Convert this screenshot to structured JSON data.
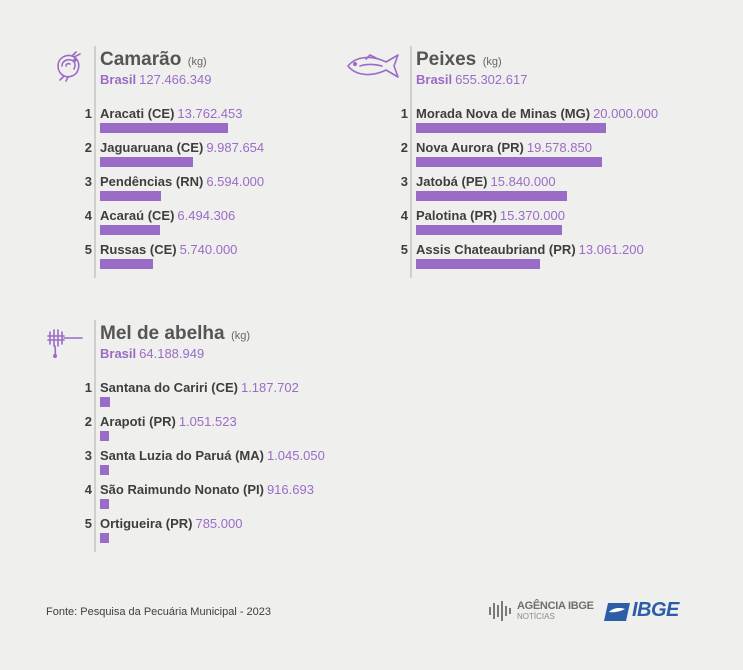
{
  "panels": [
    {
      "title": "Camarão",
      "unit": "(kg)",
      "brasil_label": "Brasil",
      "brasil_value": "127.466.349",
      "icon": "shrimp-icon",
      "rows": [
        {
          "rank": "1",
          "place": "Aracati (CE)",
          "value": "13.762.453"
        },
        {
          "rank": "2",
          "place": "Jaguaruana (CE)",
          "value": "9.987.654"
        },
        {
          "rank": "3",
          "place": "Pendências (RN)",
          "value": "6.594.000"
        },
        {
          "rank": "4",
          "place": "Acaraú (CE)",
          "value": "6.494.306"
        },
        {
          "rank": "5",
          "place": "Russas (CE)",
          "value": "5.740.000"
        }
      ]
    },
    {
      "title": "Peixes",
      "unit": "(kg)",
      "brasil_label": "Brasil",
      "brasil_value": "655.302.617",
      "icon": "fish-icon",
      "rows": [
        {
          "rank": "1",
          "place": "Morada Nova de Minas (MG)",
          "value": "20.000.000"
        },
        {
          "rank": "2",
          "place": "Nova Aurora (PR)",
          "value": "19.578.850"
        },
        {
          "rank": "3",
          "place": "Jatobá (PE)",
          "value": "15.840.000"
        },
        {
          "rank": "4",
          "place": "Palotina (PR)",
          "value": "15.370.000"
        },
        {
          "rank": "5",
          "place": "Assis Chateaubriand (PR)",
          "value": "13.061.200"
        }
      ]
    },
    {
      "title": "Mel de abelha",
      "unit": "(kg)",
      "brasil_label": "Brasil",
      "brasil_value": "64.188.949",
      "icon": "honey-dipper-icon",
      "rows": [
        {
          "rank": "1",
          "place": "Santana do Cariri (CE)",
          "value": "1.187.702"
        },
        {
          "rank": "2",
          "place": "Arapoti (PR)",
          "value": "1.051.523"
        },
        {
          "rank": "3",
          "place": "Santa Luzia do Paruá (MA)",
          "value": "1.045.050"
        },
        {
          "rank": "4",
          "place": "São Raimundo Nonato (PI)",
          "value": "916.693"
        },
        {
          "rank": "5",
          "place": "Ortigueira (PR)",
          "value": "785.000"
        }
      ]
    }
  ],
  "chart_data": [
    {
      "type": "bar",
      "title": "Camarão",
      "unit": "kg",
      "total": 127466349,
      "categories": [
        "Aracati (CE)",
        "Jaguaruana (CE)",
        "Pendências (RN)",
        "Acaraú (CE)",
        "Russas (CE)"
      ],
      "values": [
        13762453,
        9987654,
        6594000,
        6494306,
        5740000
      ]
    },
    {
      "type": "bar",
      "title": "Peixes",
      "unit": "kg",
      "total": 655302617,
      "categories": [
        "Morada Nova de Minas (MG)",
        "Nova Aurora (PR)",
        "Jatobá (PE)",
        "Palotina (PR)",
        "Assis Chateaubriand (PR)"
      ],
      "values": [
        20000000,
        19578850,
        15840000,
        15370000,
        13061200
      ]
    },
    {
      "type": "bar",
      "title": "Mel de abelha",
      "unit": "kg",
      "total": 64188949,
      "categories": [
        "Santana do Cariri (CE)",
        "Arapoti (PR)",
        "Santa Luzia do Paruá (MA)",
        "São Raimundo Nonato (PI)",
        "Ortigueira (PR)"
      ],
      "values": [
        1187702,
        1051523,
        1045050,
        916693,
        785000
      ]
    }
  ],
  "colors": {
    "accent": "#9a6cc7",
    "text": "#3e3e3e",
    "background": "#efefed",
    "ibge_blue": "#2c5ea8"
  },
  "footer": {
    "source": "Fonte: Pesquisa da Pecuária Municipal - 2023"
  },
  "logos": {
    "agencia_line1": "AGÊNCIA IBGE",
    "agencia_line2": "NOTÍCIAS",
    "ibge": "IBGE"
  }
}
